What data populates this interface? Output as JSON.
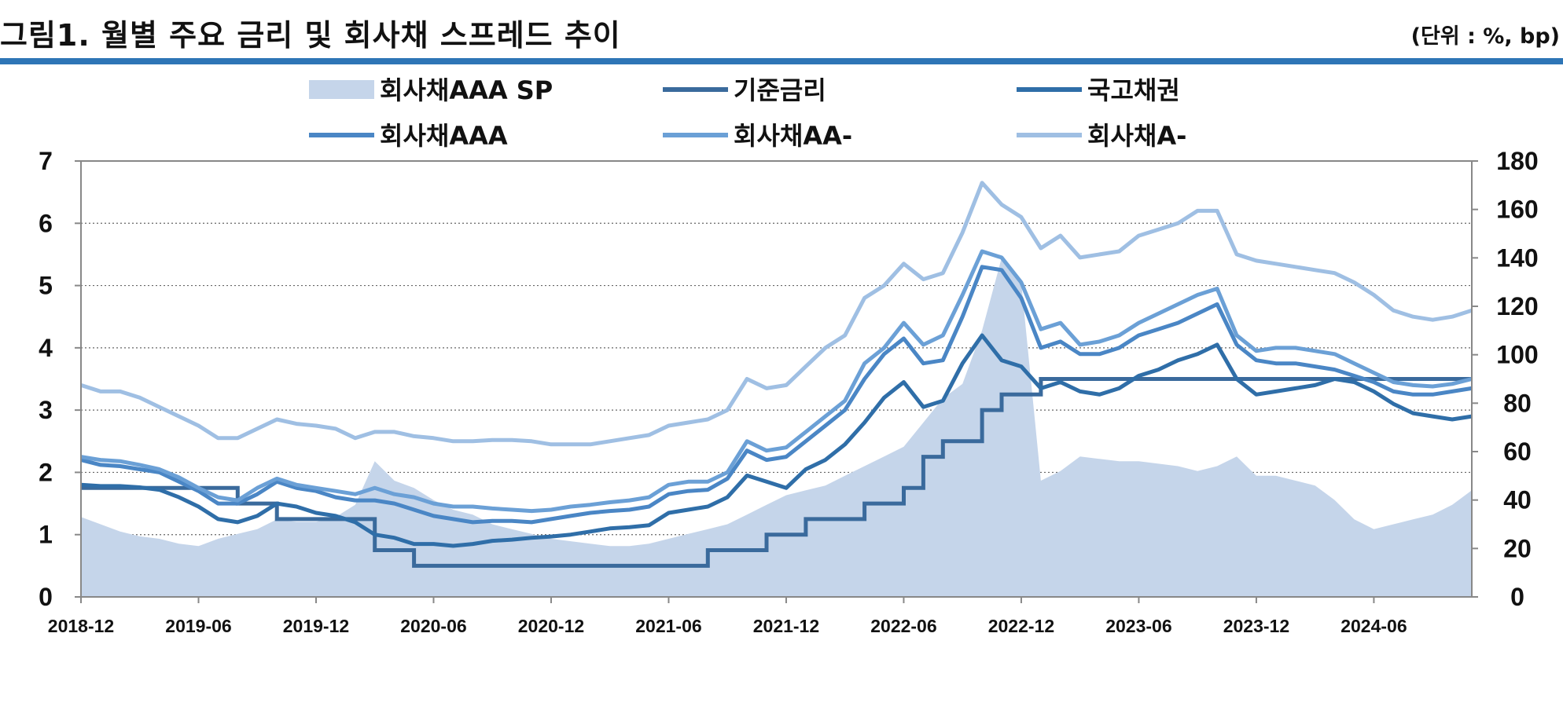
{
  "header": {
    "title": "그림1. 월별 주요 금리 및 회사채 스프레드 추이",
    "unit": "(단위 : %, bp)"
  },
  "chart_data": {
    "type": "line",
    "x_ticks": [
      "2018-12",
      "2019-06",
      "2019-12",
      "2020-06",
      "2020-12",
      "2021-06",
      "2021-12",
      "2022-06",
      "2022-12",
      "2023-06",
      "2023-12",
      "2024-06"
    ],
    "x_range": [
      "2018-12",
      "2024-11"
    ],
    "left_axis": {
      "ylim": [
        0,
        7
      ],
      "ticks": [
        0,
        1,
        2,
        3,
        4,
        5,
        6,
        7
      ]
    },
    "right_axis": {
      "ylim": [
        0,
        180
      ],
      "ticks": [
        0,
        20,
        40,
        60,
        80,
        100,
        120,
        140,
        160,
        180
      ]
    },
    "grid": "horizontal-dotted",
    "legend_position": "top",
    "x": [
      "2018-12",
      "2019-01",
      "2019-02",
      "2019-03",
      "2019-04",
      "2019-05",
      "2019-06",
      "2019-07",
      "2019-08",
      "2019-09",
      "2019-10",
      "2019-11",
      "2019-12",
      "2020-01",
      "2020-02",
      "2020-03",
      "2020-04",
      "2020-05",
      "2020-06",
      "2020-07",
      "2020-08",
      "2020-09",
      "2020-10",
      "2020-11",
      "2020-12",
      "2021-01",
      "2021-02",
      "2021-03",
      "2021-04",
      "2021-05",
      "2021-06",
      "2021-07",
      "2021-08",
      "2021-09",
      "2021-10",
      "2021-11",
      "2021-12",
      "2022-01",
      "2022-02",
      "2022-03",
      "2022-04",
      "2022-05",
      "2022-06",
      "2022-07",
      "2022-08",
      "2022-09",
      "2022-10",
      "2022-11",
      "2022-12",
      "2023-01",
      "2023-02",
      "2023-03",
      "2023-04",
      "2023-05",
      "2023-06",
      "2023-07",
      "2023-08",
      "2023-09",
      "2023-10",
      "2023-11",
      "2023-12",
      "2024-01",
      "2024-02",
      "2024-03",
      "2024-04",
      "2024-05",
      "2024-06",
      "2024-07",
      "2024-08",
      "2024-09",
      "2024-10",
      "2024-11"
    ],
    "series": [
      {
        "name": "회사채AAA SP",
        "type": "area",
        "axis": "right",
        "color": "#c5d5ea",
        "values": [
          33,
          30,
          27,
          25,
          24,
          22,
          21,
          24,
          26,
          28,
          32,
          31,
          31,
          33,
          38,
          56,
          48,
          45,
          40,
          36,
          34,
          30,
          28,
          26,
          24,
          23,
          22,
          21,
          21,
          22,
          24,
          26,
          28,
          30,
          34,
          38,
          42,
          44,
          46,
          50,
          54,
          58,
          62,
          72,
          82,
          88,
          110,
          140,
          130,
          48,
          52,
          58,
          57,
          56,
          56,
          55,
          54,
          52,
          54,
          58,
          50,
          50,
          48,
          46,
          40,
          32,
          28,
          30,
          32,
          34,
          38,
          44
        ]
      },
      {
        "name": "기준금리",
        "type": "step",
        "axis": "left",
        "color": "#3a6a9c",
        "values": [
          1.75,
          1.75,
          1.75,
          1.75,
          1.75,
          1.75,
          1.75,
          1.75,
          1.5,
          1.5,
          1.25,
          1.25,
          1.25,
          1.25,
          1.25,
          0.75,
          0.75,
          0.5,
          0.5,
          0.5,
          0.5,
          0.5,
          0.5,
          0.5,
          0.5,
          0.5,
          0.5,
          0.5,
          0.5,
          0.5,
          0.5,
          0.5,
          0.75,
          0.75,
          0.75,
          1.0,
          1.0,
          1.25,
          1.25,
          1.25,
          1.5,
          1.5,
          1.75,
          2.25,
          2.5,
          2.5,
          3.0,
          3.25,
          3.25,
          3.5,
          3.5,
          3.5,
          3.5,
          3.5,
          3.5,
          3.5,
          3.5,
          3.5,
          3.5,
          3.5,
          3.5,
          3.5,
          3.5,
          3.5,
          3.5,
          3.5,
          3.5,
          3.5,
          3.5,
          3.5,
          3.5,
          3.5
        ]
      },
      {
        "name": "국고채권",
        "type": "line",
        "axis": "left",
        "color": "#2f6ea8",
        "values": [
          1.8,
          1.78,
          1.78,
          1.76,
          1.72,
          1.6,
          1.45,
          1.25,
          1.2,
          1.3,
          1.5,
          1.45,
          1.35,
          1.3,
          1.2,
          1.0,
          0.95,
          0.85,
          0.85,
          0.82,
          0.85,
          0.9,
          0.92,
          0.95,
          0.97,
          1.0,
          1.05,
          1.1,
          1.12,
          1.15,
          1.35,
          1.4,
          1.45,
          1.6,
          1.95,
          1.85,
          1.75,
          2.05,
          2.2,
          2.45,
          2.8,
          3.2,
          3.45,
          3.05,
          3.15,
          3.75,
          4.2,
          3.8,
          3.7,
          3.35,
          3.45,
          3.3,
          3.25,
          3.35,
          3.55,
          3.65,
          3.8,
          3.9,
          4.05,
          3.5,
          3.25,
          3.3,
          3.35,
          3.4,
          3.5,
          3.45,
          3.3,
          3.1,
          2.95,
          2.9,
          2.85,
          2.9
        ]
      },
      {
        "name": "회사채AAA",
        "type": "line",
        "axis": "left",
        "color": "#4a86c5",
        "values": [
          2.2,
          2.12,
          2.1,
          2.05,
          2.0,
          1.85,
          1.7,
          1.5,
          1.5,
          1.65,
          1.85,
          1.75,
          1.7,
          1.6,
          1.55,
          1.55,
          1.5,
          1.4,
          1.3,
          1.25,
          1.2,
          1.22,
          1.22,
          1.2,
          1.25,
          1.3,
          1.35,
          1.38,
          1.4,
          1.45,
          1.65,
          1.7,
          1.72,
          1.9,
          2.35,
          2.2,
          2.25,
          2.5,
          2.75,
          3.0,
          3.5,
          3.9,
          4.15,
          3.75,
          3.8,
          4.5,
          5.3,
          5.25,
          4.8,
          4.0,
          4.1,
          3.9,
          3.9,
          4.0,
          4.2,
          4.3,
          4.4,
          4.55,
          4.7,
          4.05,
          3.8,
          3.75,
          3.75,
          3.7,
          3.65,
          3.55,
          3.45,
          3.3,
          3.25,
          3.25,
          3.3,
          3.35
        ]
      },
      {
        "name": "회사채AA-",
        "type": "line",
        "axis": "left",
        "color": "#6ba0d6",
        "values": [
          2.25,
          2.2,
          2.18,
          2.12,
          2.05,
          1.92,
          1.75,
          1.6,
          1.55,
          1.75,
          1.9,
          1.8,
          1.75,
          1.7,
          1.65,
          1.75,
          1.65,
          1.6,
          1.5,
          1.45,
          1.45,
          1.42,
          1.4,
          1.38,
          1.4,
          1.45,
          1.48,
          1.52,
          1.55,
          1.6,
          1.8,
          1.85,
          1.85,
          2.0,
          2.5,
          2.35,
          2.4,
          2.65,
          2.9,
          3.15,
          3.75,
          4.0,
          4.4,
          4.05,
          4.2,
          4.85,
          5.55,
          5.45,
          5.05,
          4.3,
          4.4,
          4.05,
          4.1,
          4.2,
          4.4,
          4.55,
          4.7,
          4.85,
          4.95,
          4.2,
          3.95,
          4.0,
          4.0,
          3.95,
          3.9,
          3.75,
          3.6,
          3.45,
          3.4,
          3.38,
          3.42,
          3.5
        ]
      },
      {
        "name": "회사채A-",
        "type": "line",
        "axis": "left",
        "color": "#9fbfe3",
        "values": [
          3.4,
          3.3,
          3.3,
          3.2,
          3.05,
          2.9,
          2.75,
          2.55,
          2.55,
          2.7,
          2.85,
          2.78,
          2.75,
          2.7,
          2.55,
          2.65,
          2.65,
          2.58,
          2.55,
          2.5,
          2.5,
          2.52,
          2.52,
          2.5,
          2.45,
          2.45,
          2.45,
          2.5,
          2.55,
          2.6,
          2.75,
          2.8,
          2.85,
          3.0,
          3.5,
          3.35,
          3.4,
          3.7,
          4.0,
          4.2,
          4.8,
          5.0,
          5.35,
          5.1,
          5.2,
          5.85,
          6.65,
          6.3,
          6.1,
          5.6,
          5.8,
          5.45,
          5.5,
          5.55,
          5.8,
          5.9,
          6.0,
          6.2,
          6.2,
          5.5,
          5.4,
          5.35,
          5.3,
          5.25,
          5.2,
          5.05,
          4.85,
          4.6,
          4.5,
          4.45,
          4.5,
          4.6
        ]
      }
    ]
  }
}
